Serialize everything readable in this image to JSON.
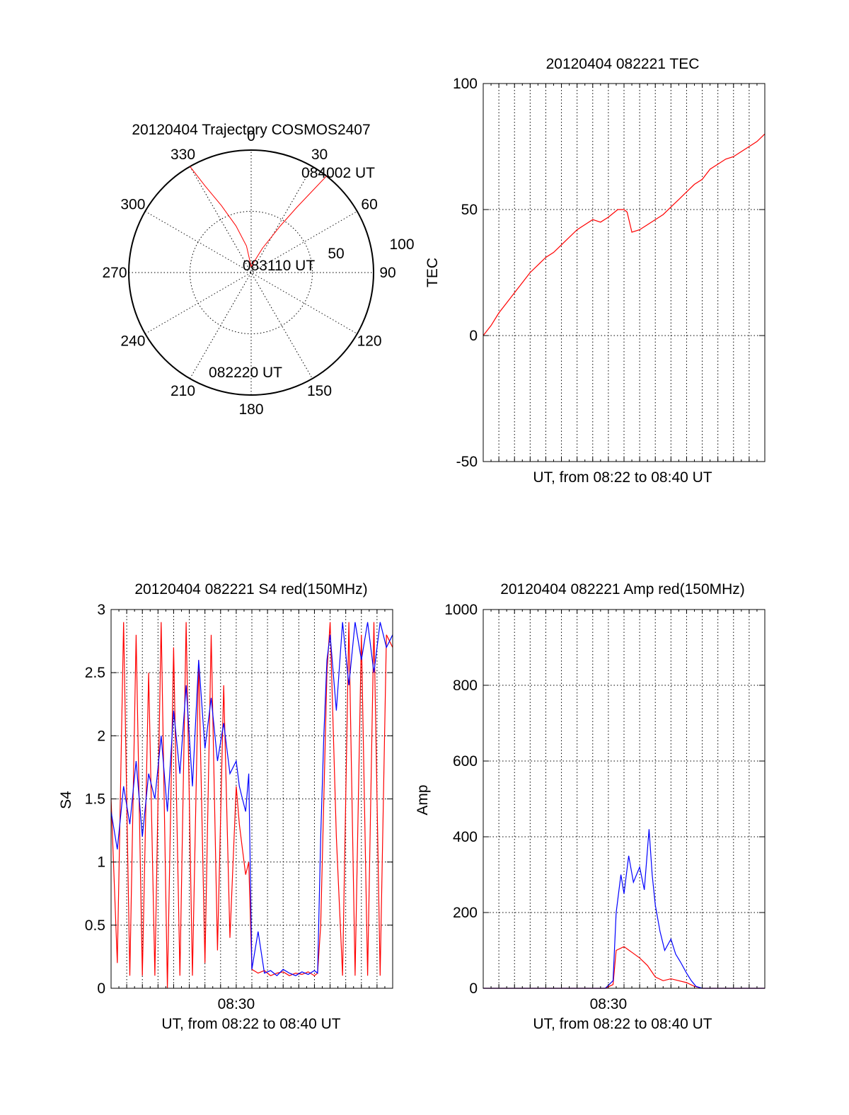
{
  "colors": {
    "red": "#ff0000",
    "blue": "#0000ff",
    "axis": "#000000"
  },
  "chart_data": [
    {
      "type": "polar",
      "title": "20120404 Trajectory COSMOS2407",
      "angle_labels": [
        "0",
        "30",
        "60",
        "90",
        "120",
        "150",
        "180",
        "210",
        "240",
        "270",
        "300",
        "330"
      ],
      "radius_labels": [
        "50",
        "100"
      ],
      "r_max": 100,
      "series": [
        {
          "color": "#ff0000",
          "points": [
            [
              -30,
              100
            ],
            [
              -28,
              80
            ],
            [
              -24,
              60
            ],
            [
              -18,
              40
            ],
            [
              -10,
              22
            ],
            [
              0,
              5
            ],
            [
              25,
              22
            ],
            [
              32,
              45
            ],
            [
              35,
              65
            ],
            [
              37,
              85
            ],
            [
              38,
              100
            ]
          ]
        }
      ],
      "annotations": [
        {
          "text": "084002 UT",
          "at": "end"
        },
        {
          "text": "083110 UT",
          "at": "center"
        },
        {
          "text": "082220 UT",
          "at": "start"
        }
      ]
    },
    {
      "type": "line",
      "title": "20120404 082221 TEC",
      "xlabel": "UT, from 08:22 to 08:40 UT",
      "ylabel": "TEC",
      "xlim": [
        0,
        18
      ],
      "ylim": [
        -50,
        100
      ],
      "yticks": [
        -50,
        0,
        50,
        100
      ],
      "xticks": [],
      "grid": true,
      "series": [
        {
          "color": "#ff0000",
          "x": [
            0.0,
            0.5,
            1.0,
            1.5,
            2.0,
            2.5,
            3.0,
            3.5,
            4.0,
            4.5,
            5.0,
            5.5,
            6.0,
            6.5,
            7.0,
            7.5,
            8.0,
            8.6,
            9.0,
            9.2,
            9.5,
            10.0,
            10.5,
            11.0,
            11.5,
            12.0,
            12.5,
            13.0,
            13.5,
            14.0,
            14.5,
            15.0,
            15.5,
            16.0,
            16.5,
            17.0,
            17.5,
            18.0
          ],
          "y": [
            0,
            4,
            9,
            13,
            17,
            21,
            25,
            28,
            31,
            33,
            36,
            39,
            42,
            44,
            46,
            45,
            47,
            50,
            50,
            49,
            41,
            42,
            44,
            46,
            48,
            51,
            54,
            57,
            60,
            62,
            66,
            68,
            70,
            71,
            73,
            75,
            77,
            80
          ]
        }
      ]
    },
    {
      "type": "line",
      "title": "20120404 082221 S4 red(150MHz)",
      "xlabel": "UT, from 08:22 to 08:40 UT",
      "ylabel": "S4",
      "xlim": [
        0,
        18
      ],
      "ylim": [
        0,
        3
      ],
      "yticks": [
        0,
        0.5,
        1,
        1.5,
        2,
        2.5,
        3
      ],
      "ytick_labels": [
        "0",
        "0.5",
        "1",
        "1.5",
        "2",
        "2.5",
        "3"
      ],
      "xticks": [
        8
      ],
      "xtick_labels": [
        "08:30"
      ],
      "grid": true,
      "series": [
        {
          "color": "#ff0000",
          "x": [
            0.0,
            0.4,
            0.8,
            1.2,
            1.6,
            2.0,
            2.4,
            2.8,
            3.2,
            3.6,
            4.0,
            4.4,
            4.8,
            5.2,
            5.6,
            6.0,
            6.4,
            6.8,
            7.2,
            7.6,
            8.0,
            8.2,
            8.4,
            8.6,
            8.8,
            9.0,
            9.4,
            9.8,
            10.2,
            10.6,
            11.0,
            11.4,
            11.8,
            12.2,
            12.6,
            13.0,
            13.2,
            13.4,
            13.6,
            13.8,
            14.0,
            14.4,
            14.8,
            15.2,
            15.6,
            16.0,
            16.4,
            16.8,
            17.2,
            17.6,
            18.0
          ],
          "y": [
            1.5,
            0.2,
            2.9,
            0.1,
            2.8,
            0.1,
            2.5,
            0.1,
            2.9,
            0.0,
            2.7,
            0.1,
            2.9,
            0.1,
            2.6,
            0.2,
            2.8,
            0.3,
            2.4,
            0.4,
            1.6,
            1.3,
            1.1,
            0.9,
            1.0,
            0.15,
            0.12,
            0.14,
            0.1,
            0.12,
            0.13,
            0.1,
            0.12,
            0.11,
            0.13,
            0.1,
            0.12,
            0.5,
            1.5,
            2.5,
            2.9,
            1.2,
            0.1,
            2.9,
            0.1,
            2.8,
            0.1,
            2.9,
            0.1,
            2.8,
            2.7
          ]
        },
        {
          "color": "#0000ff",
          "x": [
            0.0,
            0.4,
            0.8,
            1.2,
            1.6,
            2.0,
            2.4,
            2.8,
            3.2,
            3.6,
            4.0,
            4.4,
            4.8,
            5.2,
            5.6,
            6.0,
            6.4,
            6.8,
            7.2,
            7.6,
            8.0,
            8.2,
            8.4,
            8.6,
            8.8,
            9.0,
            9.4,
            9.8,
            10.2,
            10.6,
            11.0,
            11.4,
            11.8,
            12.2,
            12.6,
            13.0,
            13.2,
            13.4,
            13.6,
            13.8,
            14.0,
            14.4,
            14.8,
            15.2,
            15.6,
            16.0,
            16.4,
            16.8,
            17.2,
            17.6,
            18.0
          ],
          "y": [
            1.4,
            1.1,
            1.6,
            1.3,
            1.8,
            1.2,
            1.7,
            1.5,
            2.0,
            1.4,
            2.2,
            1.7,
            2.4,
            1.6,
            2.6,
            1.9,
            2.3,
            1.8,
            2.1,
            1.7,
            1.8,
            1.6,
            1.5,
            1.4,
            1.7,
            0.15,
            0.45,
            0.12,
            0.14,
            0.1,
            0.15,
            0.12,
            0.1,
            0.13,
            0.11,
            0.14,
            0.12,
            1.2,
            2.0,
            2.6,
            2.8,
            2.2,
            2.9,
            2.4,
            2.9,
            2.6,
            2.9,
            2.5,
            2.9,
            2.7,
            2.8
          ]
        }
      ]
    },
    {
      "type": "line",
      "title": "20120404 082221 Amp red(150MHz)",
      "xlabel": "UT, from 08:22 to 08:40 UT",
      "ylabel": "Amp",
      "xlim": [
        0,
        18
      ],
      "ylim": [
        0,
        1000
      ],
      "yticks": [
        0,
        200,
        400,
        600,
        800,
        1000
      ],
      "ytick_labels": [
        "0",
        "200",
        "400",
        "600",
        "800",
        "1000"
      ],
      "xticks": [
        8
      ],
      "xtick_labels": [
        "08:30"
      ],
      "grid": true,
      "series": [
        {
          "color": "#ff0000",
          "x": [
            0.0,
            7.8,
            8.3,
            8.5,
            9.0,
            9.5,
            10.0,
            10.5,
            11.0,
            11.5,
            12.0,
            12.5,
            13.0,
            13.5,
            14.0,
            14.5,
            18.0
          ],
          "y": [
            0,
            0,
            10,
            100,
            110,
            95,
            80,
            60,
            30,
            20,
            25,
            20,
            15,
            5,
            0,
            0,
            0
          ]
        },
        {
          "color": "#0000ff",
          "x": [
            0.0,
            7.8,
            8.3,
            8.5,
            8.8,
            9.0,
            9.3,
            9.6,
            10.0,
            10.3,
            10.6,
            10.8,
            11.0,
            11.3,
            11.6,
            12.0,
            12.3,
            12.6,
            13.0,
            13.3,
            13.6,
            14.0,
            18.0
          ],
          "y": [
            0,
            0,
            20,
            200,
            300,
            250,
            350,
            280,
            320,
            260,
            420,
            300,
            220,
            150,
            100,
            130,
            90,
            70,
            40,
            20,
            5,
            0,
            0
          ]
        }
      ]
    }
  ]
}
